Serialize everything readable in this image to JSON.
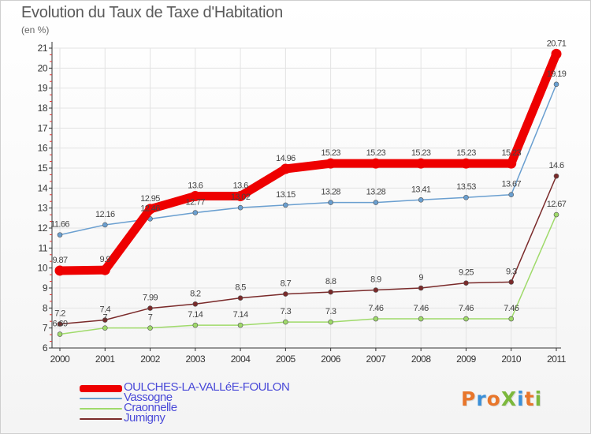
{
  "title": "Evolution du Taux de Taxe d'Habitation",
  "subtitle": "(en %)",
  "logo": {
    "text": "ProXiti",
    "letter_colors": [
      "#e8762b",
      "#3a8fd8",
      "#e8762b",
      "#7cb83c",
      "#3a8fd8",
      "#e8762b",
      "#7cb83c"
    ]
  },
  "chart_data": {
    "type": "line",
    "title": "Evolution du Taux de Taxe d'Habitation",
    "ylabel": "(en %)",
    "xlabel": "",
    "x": [
      "2000",
      "2001",
      "2002",
      "2003",
      "2004",
      "2005",
      "2006",
      "2007",
      "2008",
      "2009",
      "2010",
      "2011"
    ],
    "ylim": [
      6,
      21
    ],
    "yticks": [
      6,
      7,
      8,
      9,
      10,
      11,
      12,
      13,
      14,
      15,
      16,
      17,
      18,
      19,
      20,
      21
    ],
    "grid": true,
    "legend_position": "bottom-left",
    "series": [
      {
        "name": "OULCHES-LA-VALLéE-FOULON",
        "color": "#ee0000",
        "values": [
          9.87,
          9.9,
          12.95,
          13.6,
          13.6,
          14.96,
          15.23,
          15.23,
          15.23,
          15.23,
          15.23,
          20.71
        ],
        "labels": [
          "9.87",
          "9.9",
          "12.95",
          "13.6",
          "13.6",
          "14.96",
          "15.23",
          "15.23",
          "15.23",
          "15.23",
          "15.23",
          "20.71"
        ]
      },
      {
        "name": "Vassogne",
        "color": "#6a9fd0",
        "values": [
          11.66,
          12.16,
          12.46,
          12.77,
          13.02,
          13.15,
          13.28,
          13.28,
          13.41,
          13.53,
          13.67,
          19.19
        ],
        "labels": [
          "11.66",
          "12.16",
          "12.46",
          "12.77",
          "13.02",
          "13.15",
          "13.28",
          "13.28",
          "13.41",
          "13.53",
          "13.67",
          "19.19"
        ]
      },
      {
        "name": "Craonnelle",
        "color": "#9fda6a",
        "values": [
          6.69,
          7,
          7,
          7.14,
          7.14,
          7.3,
          7.3,
          7.46,
          7.46,
          7.46,
          7.46,
          12.67
        ],
        "labels": [
          "6.69",
          "7",
          "7",
          "7.14",
          "7.14",
          "7.3",
          "7.3",
          "7.46",
          "7.46",
          "7.46",
          "7.46",
          "12.67"
        ]
      },
      {
        "name": "Jumigny",
        "color": "#7a2a2a",
        "values": [
          7.2,
          7.4,
          7.99,
          8.2,
          8.5,
          8.7,
          8.8,
          8.9,
          9,
          9.25,
          9.3,
          14.6
        ],
        "labels": [
          "7.2",
          "7.4",
          "7.99",
          "8.2",
          "8.5",
          "8.7",
          "8.8",
          "8.9",
          "9",
          "9.25",
          "9.3",
          "14.6"
        ]
      }
    ]
  }
}
